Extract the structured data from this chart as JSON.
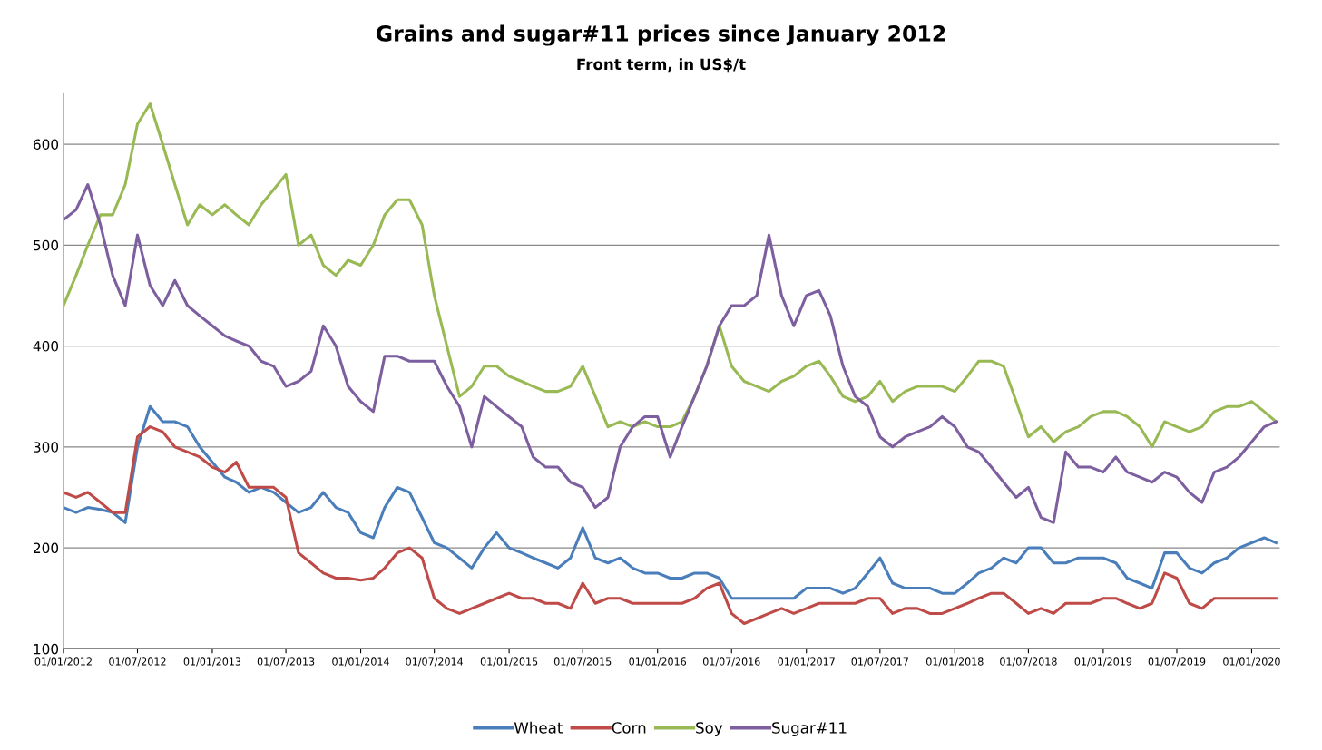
{
  "chart_data": {
    "type": "line",
    "title": "Grains and sugar#11 prices since January 2012",
    "subtitle": "Front term, in US$/t",
    "x": [
      "2012-01",
      "2012-02",
      "2012-03",
      "2012-04",
      "2012-05",
      "2012-06",
      "2012-07",
      "2012-08",
      "2012-09",
      "2012-10",
      "2012-11",
      "2012-12",
      "2013-01",
      "2013-02",
      "2013-03",
      "2013-04",
      "2013-05",
      "2013-06",
      "2013-07",
      "2013-08",
      "2013-09",
      "2013-10",
      "2013-11",
      "2013-12",
      "2014-01",
      "2014-02",
      "2014-03",
      "2014-04",
      "2014-05",
      "2014-06",
      "2014-07",
      "2014-08",
      "2014-09",
      "2014-10",
      "2014-11",
      "2014-12",
      "2015-01",
      "2015-02",
      "2015-03",
      "2015-04",
      "2015-05",
      "2015-06",
      "2015-07",
      "2015-08",
      "2015-09",
      "2015-10",
      "2015-11",
      "2015-12",
      "2016-01",
      "2016-02",
      "2016-03",
      "2016-04",
      "2016-05",
      "2016-06",
      "2016-07",
      "2016-08",
      "2016-09",
      "2016-10",
      "2016-11",
      "2016-12",
      "2017-01",
      "2017-02",
      "2017-03",
      "2017-04",
      "2017-05",
      "2017-06",
      "2017-07",
      "2017-08",
      "2017-09",
      "2017-10",
      "2017-11",
      "2017-12",
      "2018-01",
      "2018-02",
      "2018-03",
      "2018-04",
      "2018-05",
      "2018-06",
      "2018-07",
      "2018-08",
      "2018-09",
      "2018-10",
      "2018-11",
      "2018-12",
      "2019-01",
      "2019-02",
      "2019-03",
      "2019-04",
      "2019-05",
      "2019-06",
      "2019-07",
      "2019-08",
      "2019-09",
      "2019-10",
      "2019-11",
      "2019-12",
      "2020-01",
      "2020-02",
      "2020-03"
    ],
    "series": [
      {
        "name": "Wheat",
        "color": "#4a7ebb",
        "values": [
          240,
          235,
          240,
          238,
          235,
          225,
          300,
          340,
          325,
          325,
          320,
          300,
          285,
          270,
          265,
          255,
          260,
          255,
          245,
          235,
          240,
          255,
          240,
          235,
          215,
          210,
          240,
          260,
          255,
          230,
          205,
          200,
          190,
          180,
          200,
          215,
          200,
          195,
          190,
          185,
          180,
          190,
          220,
          190,
          185,
          190,
          180,
          175,
          175,
          170,
          170,
          175,
          175,
          170,
          150,
          150,
          150,
          150,
          150,
          150,
          160,
          160,
          160,
          155,
          160,
          175,
          190,
          165,
          160,
          160,
          160,
          155,
          155,
          165,
          175,
          180,
          190,
          185,
          200,
          200,
          185,
          185,
          190,
          190,
          190,
          185,
          170,
          165,
          160,
          195,
          195,
          180,
          175,
          185,
          190,
          200,
          205,
          210,
          205
        ]
      },
      {
        "name": "Corn",
        "color": "#be4b48",
        "values": [
          255,
          250,
          255,
          245,
          235,
          235,
          310,
          320,
          315,
          300,
          295,
          290,
          280,
          275,
          285,
          260,
          260,
          260,
          250,
          195,
          185,
          175,
          170,
          170,
          168,
          170,
          180,
          195,
          200,
          190,
          150,
          140,
          135,
          140,
          145,
          150,
          155,
          150,
          150,
          145,
          145,
          140,
          165,
          145,
          150,
          150,
          145,
          145,
          145,
          145,
          145,
          150,
          160,
          165,
          135,
          125,
          130,
          135,
          140,
          135,
          140,
          145,
          145,
          145,
          145,
          150,
          150,
          135,
          140,
          140,
          135,
          135,
          140,
          145,
          150,
          155,
          155,
          145,
          135,
          140,
          135,
          145,
          145,
          145,
          150,
          150,
          145,
          140,
          145,
          175,
          170,
          145,
          140,
          150,
          150,
          150,
          150,
          150,
          150
        ]
      },
      {
        "name": "Soy",
        "color": "#98b954",
        "values": [
          440,
          470,
          500,
          530,
          530,
          560,
          620,
          640,
          600,
          560,
          520,
          540,
          530,
          540,
          530,
          520,
          540,
          555,
          570,
          500,
          510,
          480,
          470,
          485,
          480,
          500,
          530,
          545,
          545,
          520,
          450,
          400,
          350,
          360,
          380,
          380,
          370,
          365,
          360,
          355,
          355,
          360,
          380,
          350,
          320,
          325,
          320,
          325,
          320,
          320,
          325,
          350,
          380,
          420,
          380,
          365,
          360,
          355,
          365,
          370,
          380,
          385,
          370,
          350,
          345,
          350,
          365,
          345,
          355,
          360,
          360,
          360,
          355,
          370,
          385,
          385,
          380,
          345,
          310,
          320,
          305,
          315,
          320,
          330,
          335,
          335,
          330,
          320,
          300,
          325,
          320,
          315,
          320,
          335,
          340,
          340,
          345,
          335,
          325
        ]
      },
      {
        "name": "Sugar#11",
        "color": "#7d5fa0",
        "values": [
          525,
          535,
          560,
          520,
          470,
          440,
          510,
          460,
          440,
          465,
          440,
          430,
          420,
          410,
          405,
          400,
          385,
          380,
          360,
          365,
          375,
          420,
          400,
          360,
          345,
          335,
          390,
          390,
          385,
          385,
          385,
          360,
          340,
          300,
          350,
          340,
          330,
          320,
          290,
          280,
          280,
          265,
          260,
          240,
          250,
          300,
          320,
          330,
          330,
          290,
          320,
          350,
          380,
          420,
          440,
          440,
          450,
          510,
          450,
          420,
          450,
          455,
          430,
          380,
          350,
          340,
          310,
          300,
          310,
          315,
          320,
          330,
          320,
          300,
          295,
          280,
          265,
          250,
          260,
          230,
          225,
          295,
          280,
          280,
          275,
          290,
          275,
          270,
          265,
          275,
          270,
          255,
          245,
          275,
          280,
          290,
          305,
          320,
          325
        ]
      }
    ],
    "xlim": [
      "2012-01-01",
      "2020-03-10"
    ],
    "xticks": [
      {
        "value": "2012-01-01",
        "label": "01/01/2012"
      },
      {
        "value": "2012-07-01",
        "label": "01/07/2012"
      },
      {
        "value": "2013-01-01",
        "label": "01/01/2013"
      },
      {
        "value": "2013-07-01",
        "label": "01/07/2013"
      },
      {
        "value": "2014-01-01",
        "label": "01/01/2014"
      },
      {
        "value": "2014-07-01",
        "label": "01/07/2014"
      },
      {
        "value": "2015-01-01",
        "label": "01/01/2015"
      },
      {
        "value": "2015-07-01",
        "label": "01/07/2015"
      },
      {
        "value": "2016-01-01",
        "label": "01/01/2016"
      },
      {
        "value": "2016-07-01",
        "label": "01/07/2016"
      },
      {
        "value": "2017-01-01",
        "label": "01/01/2017"
      },
      {
        "value": "2017-07-01",
        "label": "01/07/2017"
      },
      {
        "value": "2018-01-01",
        "label": "01/01/2018"
      },
      {
        "value": "2018-07-01",
        "label": "01/07/2018"
      },
      {
        "value": "2019-01-01",
        "label": "01/01/2019"
      },
      {
        "value": "2019-07-01",
        "label": "01/07/2019"
      },
      {
        "value": "2020-01-01",
        "label": "01/01/2020"
      }
    ],
    "ylim": [
      100,
      650
    ],
    "yticks": [
      100,
      200,
      300,
      400,
      500,
      600
    ],
    "grid": "y",
    "legend": "bottom",
    "marker": "none",
    "line_style": "solid"
  }
}
